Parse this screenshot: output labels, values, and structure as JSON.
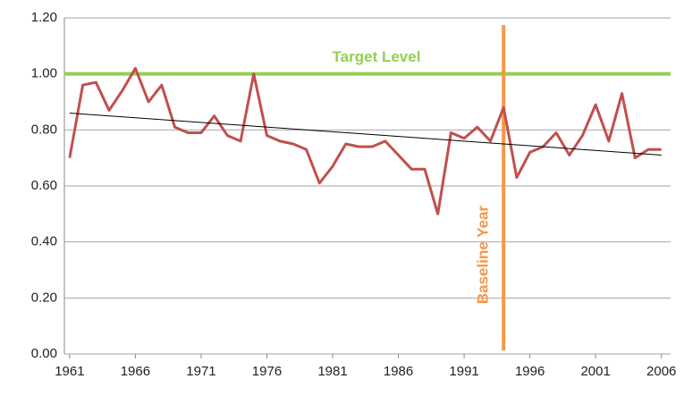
{
  "chart_data": {
    "type": "line",
    "x": [
      1961,
      1962,
      1963,
      1964,
      1965,
      1966,
      1967,
      1968,
      1969,
      1970,
      1971,
      1972,
      1973,
      1974,
      1975,
      1976,
      1977,
      1978,
      1979,
      1980,
      1981,
      1982,
      1983,
      1984,
      1985,
      1986,
      1987,
      1988,
      1989,
      1990,
      1991,
      1992,
      1993,
      1994,
      1995,
      1996,
      1997,
      1998,
      1999,
      2000,
      2001,
      2002,
      2003,
      2004,
      2005,
      2006
    ],
    "series": [
      {
        "color": "#c0504d",
        "values": [
          0.7,
          0.96,
          0.97,
          0.87,
          0.94,
          1.02,
          0.9,
          0.96,
          0.81,
          0.79,
          0.79,
          0.85,
          0.78,
          0.76,
          1.0,
          0.78,
          0.76,
          0.75,
          0.73,
          0.61,
          0.67,
          0.75,
          0.74,
          0.74,
          0.76,
          0.71,
          0.66,
          0.66,
          0.5,
          0.79,
          0.77,
          0.81,
          0.76,
          0.88,
          0.63,
          0.72,
          0.74,
          0.79,
          0.71,
          0.78,
          0.89,
          0.76,
          0.93,
          0.7,
          0.73,
          0.73
        ]
      }
    ],
    "trend": {
      "x": [
        1961,
        2006
      ],
      "values": [
        0.86,
        0.71
      ],
      "color": "#000000"
    },
    "target": {
      "label": "Target Level",
      "value": 1.0,
      "color": "#92d050"
    },
    "baseline": {
      "label": "Baseline Year",
      "x": 1994,
      "color": "#f79646"
    },
    "xlim": [
      1960.6,
      2006.7
    ],
    "xticks": [
      1961,
      1966,
      1971,
      1976,
      1981,
      1986,
      1991,
      1996,
      2001,
      2006
    ],
    "ylim": [
      0,
      1.2
    ],
    "yticks": [
      {
        "value": 0,
        "label": "0.00"
      },
      {
        "value": 0.2,
        "label": "0.20"
      },
      {
        "value": 0.4,
        "label": "0.40"
      },
      {
        "value": 0.6,
        "label": "0.60"
      },
      {
        "value": 0.8,
        "label": "0.80"
      },
      {
        "value": 1.0,
        "label": "1.00"
      },
      {
        "value": 1.2,
        "label": "1.20"
      }
    ],
    "grid": true
  }
}
